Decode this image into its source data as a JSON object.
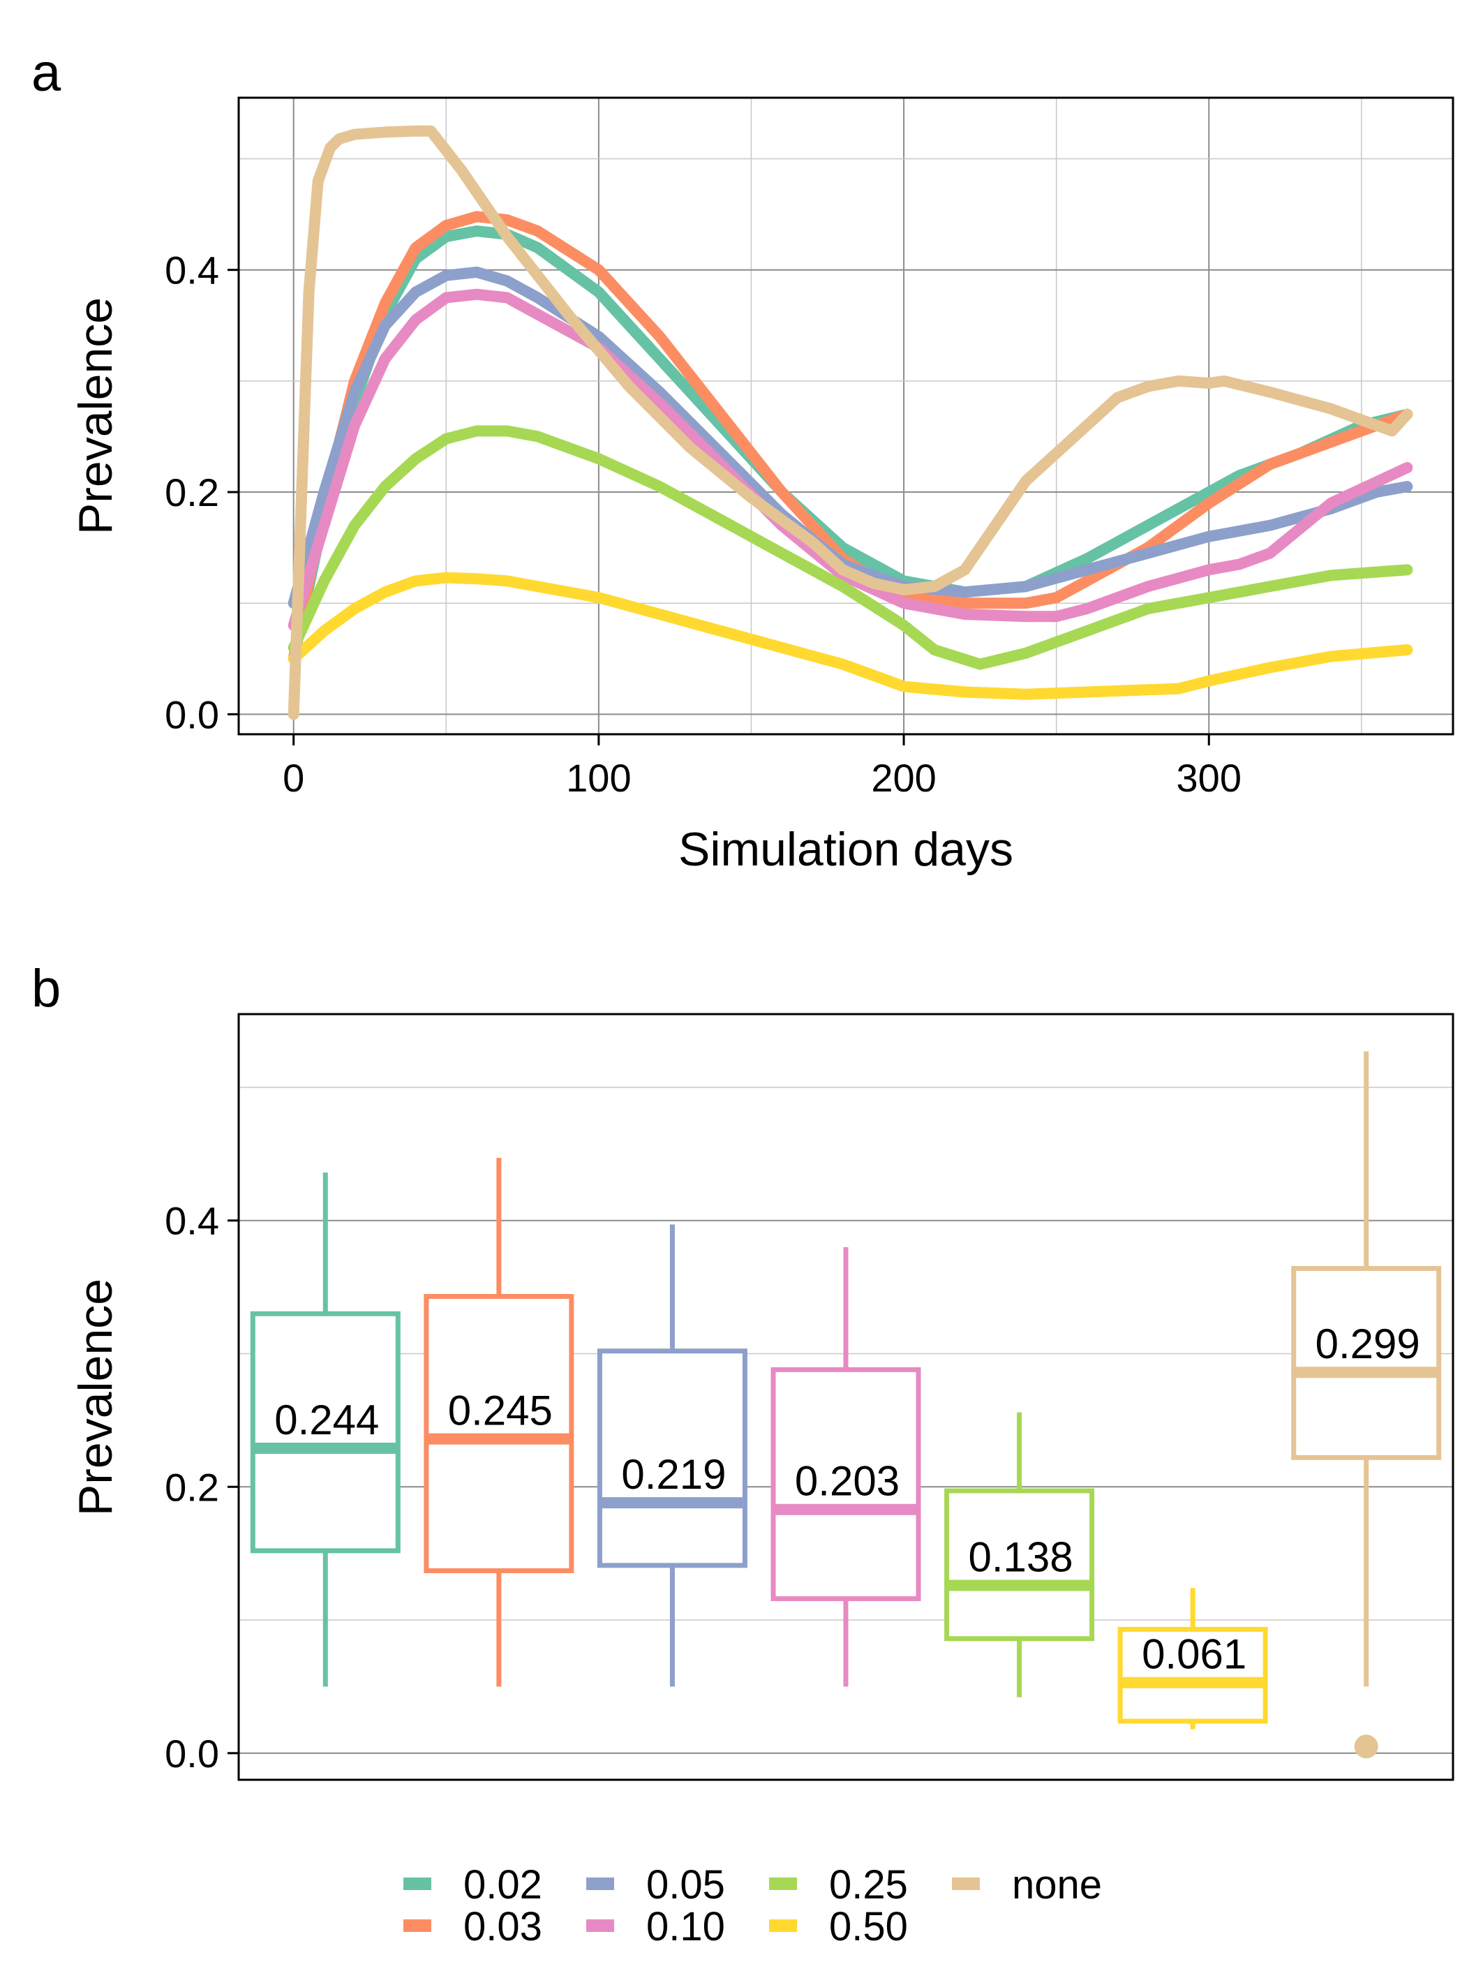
{
  "panel_labels": [
    "a",
    "b"
  ],
  "colors": {
    "0.02": "#66c2a5",
    "0.03": "#fc8d62",
    "0.05": "#8da0cb",
    "0.10": "#e78ac3",
    "0.25": "#a6d854",
    "0.50": "#ffd92f",
    "none": "#e5c494"
  },
  "chart_data": [
    {
      "panel": "a",
      "type": "line",
      "xlabel": "Simulation days",
      "ylabel": "Prevalence",
      "xlim": [
        -18,
        380
      ],
      "ylim": [
        -0.018,
        0.555
      ],
      "xticks": [
        "0",
        "100",
        "200",
        "300"
      ],
      "xtick_values": [
        0,
        100,
        200,
        300
      ],
      "yticks": [
        "0.0",
        "0.2",
        "0.4"
      ],
      "ytick_values": [
        0.0,
        0.2,
        0.4
      ],
      "grid": true,
      "series": [
        {
          "name": "0.02",
          "x": [
            0,
            10,
            20,
            30,
            40,
            50,
            60,
            70,
            80,
            100,
            120,
            140,
            160,
            180,
            200,
            220,
            240,
            260,
            280,
            300,
            310,
            330,
            350,
            365
          ],
          "y": [
            0.05,
            0.18,
            0.28,
            0.36,
            0.41,
            0.43,
            0.435,
            0.432,
            0.42,
            0.38,
            0.32,
            0.26,
            0.2,
            0.15,
            0.12,
            0.11,
            0.115,
            0.14,
            0.17,
            0.2,
            0.215,
            0.235,
            0.26,
            0.27
          ]
        },
        {
          "name": "0.03",
          "x": [
            0,
            10,
            20,
            30,
            40,
            50,
            60,
            70,
            80,
            100,
            120,
            140,
            160,
            180,
            200,
            220,
            240,
            250,
            260,
            280,
            300,
            320,
            340,
            365
          ],
          "y": [
            0.05,
            0.19,
            0.3,
            0.37,
            0.42,
            0.44,
            0.448,
            0.445,
            0.435,
            0.4,
            0.34,
            0.27,
            0.2,
            0.14,
            0.105,
            0.1,
            0.1,
            0.105,
            0.12,
            0.15,
            0.19,
            0.225,
            0.245,
            0.27
          ]
        },
        {
          "name": "0.05",
          "x": [
            0,
            10,
            20,
            30,
            40,
            50,
            60,
            70,
            80,
            100,
            120,
            140,
            160,
            180,
            200,
            220,
            240,
            260,
            280,
            300,
            320,
            340,
            355,
            365
          ],
          "y": [
            0.1,
            0.2,
            0.29,
            0.35,
            0.38,
            0.395,
            0.398,
            0.39,
            0.375,
            0.34,
            0.29,
            0.235,
            0.18,
            0.135,
            0.115,
            0.11,
            0.115,
            0.13,
            0.145,
            0.16,
            0.17,
            0.185,
            0.2,
            0.205
          ]
        },
        {
          "name": "0.10",
          "x": [
            0,
            10,
            20,
            30,
            40,
            50,
            60,
            70,
            80,
            100,
            120,
            140,
            160,
            180,
            200,
            220,
            240,
            250,
            260,
            280,
            300,
            310,
            320,
            340,
            365
          ],
          "y": [
            0.08,
            0.17,
            0.26,
            0.32,
            0.355,
            0.375,
            0.378,
            0.375,
            0.36,
            0.33,
            0.28,
            0.225,
            0.17,
            0.125,
            0.1,
            0.09,
            0.088,
            0.088,
            0.095,
            0.115,
            0.13,
            0.135,
            0.145,
            0.19,
            0.222
          ]
        },
        {
          "name": "0.25",
          "x": [
            0,
            10,
            20,
            30,
            40,
            50,
            60,
            70,
            80,
            100,
            120,
            140,
            160,
            180,
            200,
            210,
            225,
            240,
            260,
            280,
            300,
            310,
            320,
            340,
            365
          ],
          "y": [
            0.06,
            0.12,
            0.17,
            0.205,
            0.23,
            0.248,
            0.255,
            0.255,
            0.25,
            0.23,
            0.205,
            0.175,
            0.145,
            0.115,
            0.08,
            0.058,
            0.045,
            0.055,
            0.075,
            0.095,
            0.105,
            0.11,
            0.115,
            0.125,
            0.13
          ]
        },
        {
          "name": "0.50",
          "x": [
            0,
            10,
            20,
            30,
            40,
            50,
            60,
            70,
            80,
            100,
            120,
            140,
            160,
            180,
            200,
            220,
            240,
            260,
            280,
            290,
            300,
            320,
            340,
            365
          ],
          "y": [
            0.05,
            0.075,
            0.095,
            0.11,
            0.12,
            0.123,
            0.122,
            0.12,
            0.115,
            0.105,
            0.09,
            0.075,
            0.06,
            0.045,
            0.025,
            0.02,
            0.018,
            0.02,
            0.022,
            0.023,
            0.03,
            0.042,
            0.052,
            0.058
          ]
        },
        {
          "name": "none",
          "x": [
            0,
            2,
            5,
            8,
            12,
            15,
            20,
            30,
            40,
            45,
            55,
            70,
            90,
            110,
            130,
            150,
            170,
            180,
            190,
            200,
            210,
            220,
            230,
            240,
            250,
            260,
            270,
            280,
            290,
            300,
            305,
            320,
            340,
            360,
            365
          ],
          "y": [
            0.0,
            0.15,
            0.38,
            0.48,
            0.51,
            0.518,
            0.522,
            0.524,
            0.525,
            0.525,
            0.49,
            0.43,
            0.36,
            0.295,
            0.24,
            0.195,
            0.155,
            0.13,
            0.118,
            0.112,
            0.115,
            0.13,
            0.17,
            0.21,
            0.235,
            0.26,
            0.285,
            0.295,
            0.3,
            0.298,
            0.3,
            0.29,
            0.275,
            0.255,
            0.27
          ]
        }
      ]
    },
    {
      "panel": "b",
      "type": "box",
      "xlabel": "",
      "ylabel": "Prevalence",
      "ylim": [
        -0.02,
        0.555
      ],
      "yticks": [
        "0.0",
        "0.2",
        "0.4"
      ],
      "ytick_values": [
        0.0,
        0.2,
        0.4
      ],
      "grid": true,
      "categories": [
        "0.02",
        "0.03",
        "0.05",
        "0.10",
        "0.25",
        "0.50",
        "none"
      ],
      "boxes": [
        {
          "name": "0.02",
          "whisker_low": 0.05,
          "q1": 0.152,
          "median": 0.229,
          "q3": 0.33,
          "whisker_high": 0.436,
          "mean_label": "0.244"
        },
        {
          "name": "0.03",
          "whisker_low": 0.05,
          "q1": 0.137,
          "median": 0.236,
          "q3": 0.343,
          "whisker_high": 0.447,
          "mean_label": "0.245"
        },
        {
          "name": "0.05",
          "whisker_low": 0.05,
          "q1": 0.141,
          "median": 0.188,
          "q3": 0.302,
          "whisker_high": 0.397,
          "mean_label": "0.219"
        },
        {
          "name": "0.10",
          "whisker_low": 0.05,
          "q1": 0.116,
          "median": 0.183,
          "q3": 0.288,
          "whisker_high": 0.38,
          "mean_label": "0.203"
        },
        {
          "name": "0.25",
          "whisker_low": 0.042,
          "q1": 0.086,
          "median": 0.126,
          "q3": 0.197,
          "whisker_high": 0.256,
          "mean_label": "0.138"
        },
        {
          "name": "0.50",
          "whisker_low": 0.018,
          "q1": 0.024,
          "median": 0.053,
          "q3": 0.093,
          "whisker_high": 0.124,
          "mean_label": "0.061"
        },
        {
          "name": "none",
          "whisker_low": 0.05,
          "q1": 0.222,
          "median": 0.286,
          "q3": 0.364,
          "whisker_high": 0.527,
          "mean_label": "0.299",
          "outliers": [
            0.005
          ]
        }
      ]
    }
  ],
  "legend": {
    "placement": "bottom",
    "items": [
      "0.02",
      "0.03",
      "0.05",
      "0.10",
      "0.25",
      "0.50",
      "none"
    ]
  }
}
